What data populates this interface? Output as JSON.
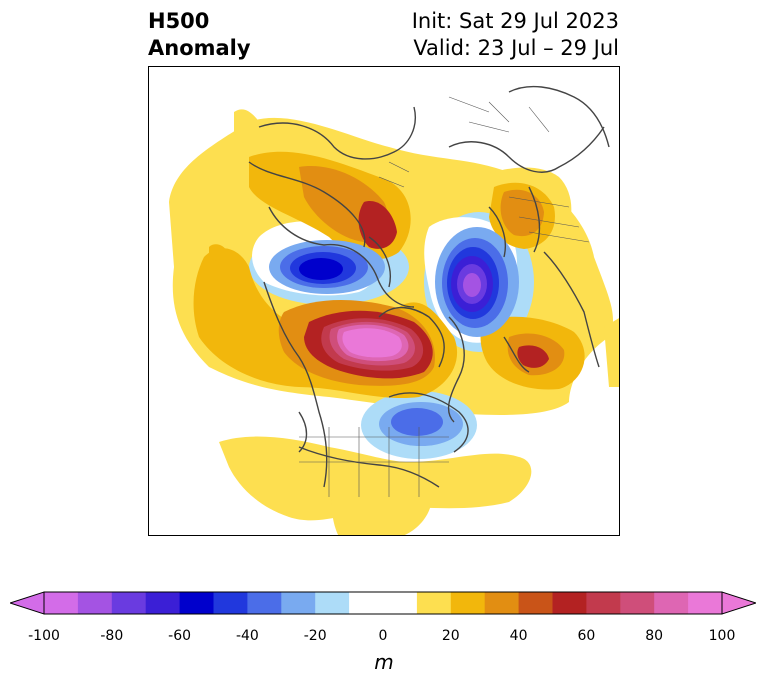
{
  "title": {
    "field": "H500",
    "product": "Anomaly"
  },
  "init": "Init: Sat 29 Jul 2023",
  "valid": "Valid: 23 Jul – 29 Jul",
  "colorbar": {
    "unit": "m",
    "ticks": [
      "-100",
      "-80",
      "-60",
      "-40",
      "-20",
      "0",
      "20",
      "40",
      "60",
      "80",
      "100"
    ],
    "levels": [
      -100,
      -90,
      -80,
      -70,
      -60,
      -50,
      -40,
      -30,
      -20,
      -10,
      10,
      20,
      30,
      40,
      50,
      60,
      70,
      80,
      90,
      100
    ],
    "colors": [
      "#d36ce8",
      "#a453e3",
      "#6a3be0",
      "#3b1fd6",
      "#0000cc",
      "#2138dd",
      "#4b6de8",
      "#79aaf0",
      "#addcf8",
      "#ffffff",
      "#fddf50",
      "#f2b70c",
      "#e28e12",
      "#c95418",
      "#b32222",
      "#c23a4d",
      "#cf4e7a",
      "#de66b3",
      "#ea78d8"
    ],
    "extend": "both",
    "under_color": "#d36ce8",
    "over_color": "#ea78d8"
  }
}
